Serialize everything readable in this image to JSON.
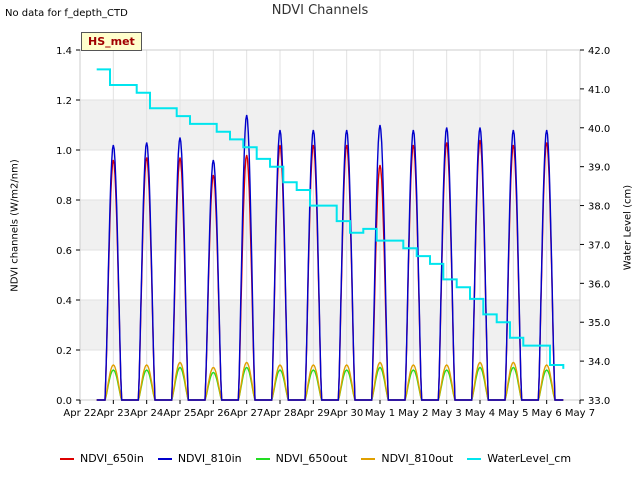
{
  "chart_data": {
    "type": "line",
    "title": "NDVI Channels",
    "no_data_note": "No data for f_depth_CTD",
    "badge_label": "HS_met",
    "ylabel": "NDVI channels (W/m2/nm)",
    "y2label": "Water Level (cm)",
    "ylim": [
      0.0,
      1.4
    ],
    "y2lim": [
      33.0,
      42.0
    ],
    "yticks": [
      "0.0",
      "0.2",
      "0.4",
      "0.6",
      "0.8",
      "1.0",
      "1.2",
      "1.4"
    ],
    "y2ticks": [
      "33.0",
      "34.0",
      "35.0",
      "36.0",
      "37.0",
      "38.0",
      "39.0",
      "40.0",
      "41.0",
      "42.0"
    ],
    "xticks": [
      "Apr 22",
      "Apr 23",
      "Apr 24",
      "Apr 25",
      "Apr 26",
      "Apr 27",
      "Apr 28",
      "Apr 29",
      "Apr 30",
      "May 1",
      "May 2",
      "May 3",
      "May 4",
      "May 5",
      "May 6",
      "May 7"
    ],
    "x_start_day": 0,
    "x_end_day": 15,
    "daily_peaks": {
      "NDVI_810in": [
        1.02,
        1.03,
        1.05,
        0.96,
        1.14,
        1.08,
        1.08,
        1.08,
        1.1,
        1.08,
        1.09,
        1.09,
        1.08,
        1.08
      ],
      "NDVI_650in": [
        0.96,
        0.97,
        0.97,
        0.9,
        0.98,
        1.02,
        1.02,
        1.02,
        0.94,
        1.02,
        1.03,
        1.04,
        1.02,
        1.03
      ],
      "NDVI_810out": [
        0.14,
        0.14,
        0.15,
        0.13,
        0.15,
        0.14,
        0.14,
        0.14,
        0.15,
        0.14,
        0.14,
        0.15,
        0.15,
        0.14
      ],
      "NDVI_650out": [
        0.12,
        0.12,
        0.13,
        0.11,
        0.13,
        0.12,
        0.12,
        0.12,
        0.13,
        0.12,
        0.12,
        0.13,
        0.13,
        0.12
      ]
    },
    "series": [
      {
        "name": "NDVI_650in",
        "color": "#dd0000"
      },
      {
        "name": "NDVI_810in",
        "color": "#0000cc"
      },
      {
        "name": "NDVI_650out",
        "color": "#22dd22"
      },
      {
        "name": "NDVI_810out",
        "color": "#e0a000"
      },
      {
        "name": "WaterLevel_cm",
        "color": "#00e5ee",
        "axis": "right",
        "x": [
          0.0,
          0.4,
          0.8,
          1.2,
          1.6,
          2.0,
          2.4,
          2.8,
          3.2,
          3.6,
          4.0,
          4.4,
          4.8,
          5.2,
          5.6,
          6.0,
          6.4,
          6.8,
          7.2,
          7.6,
          8.0,
          8.4,
          8.8,
          9.2,
          9.6,
          10.0,
          10.4,
          10.8,
          11.2,
          11.6,
          12.0,
          12.4,
          12.8,
          13.2,
          13.6,
          14.0
        ],
        "values": [
          41.5,
          41.1,
          41.1,
          40.9,
          40.5,
          40.5,
          40.3,
          40.1,
          40.1,
          39.9,
          39.7,
          39.5,
          39.2,
          39.0,
          38.6,
          38.4,
          38.0,
          38.0,
          37.6,
          37.3,
          37.4,
          37.1,
          37.1,
          36.9,
          36.7,
          36.5,
          36.1,
          35.9,
          35.6,
          35.2,
          35.0,
          34.6,
          34.4,
          34.4,
          33.9,
          33.8
        ]
      }
    ]
  }
}
